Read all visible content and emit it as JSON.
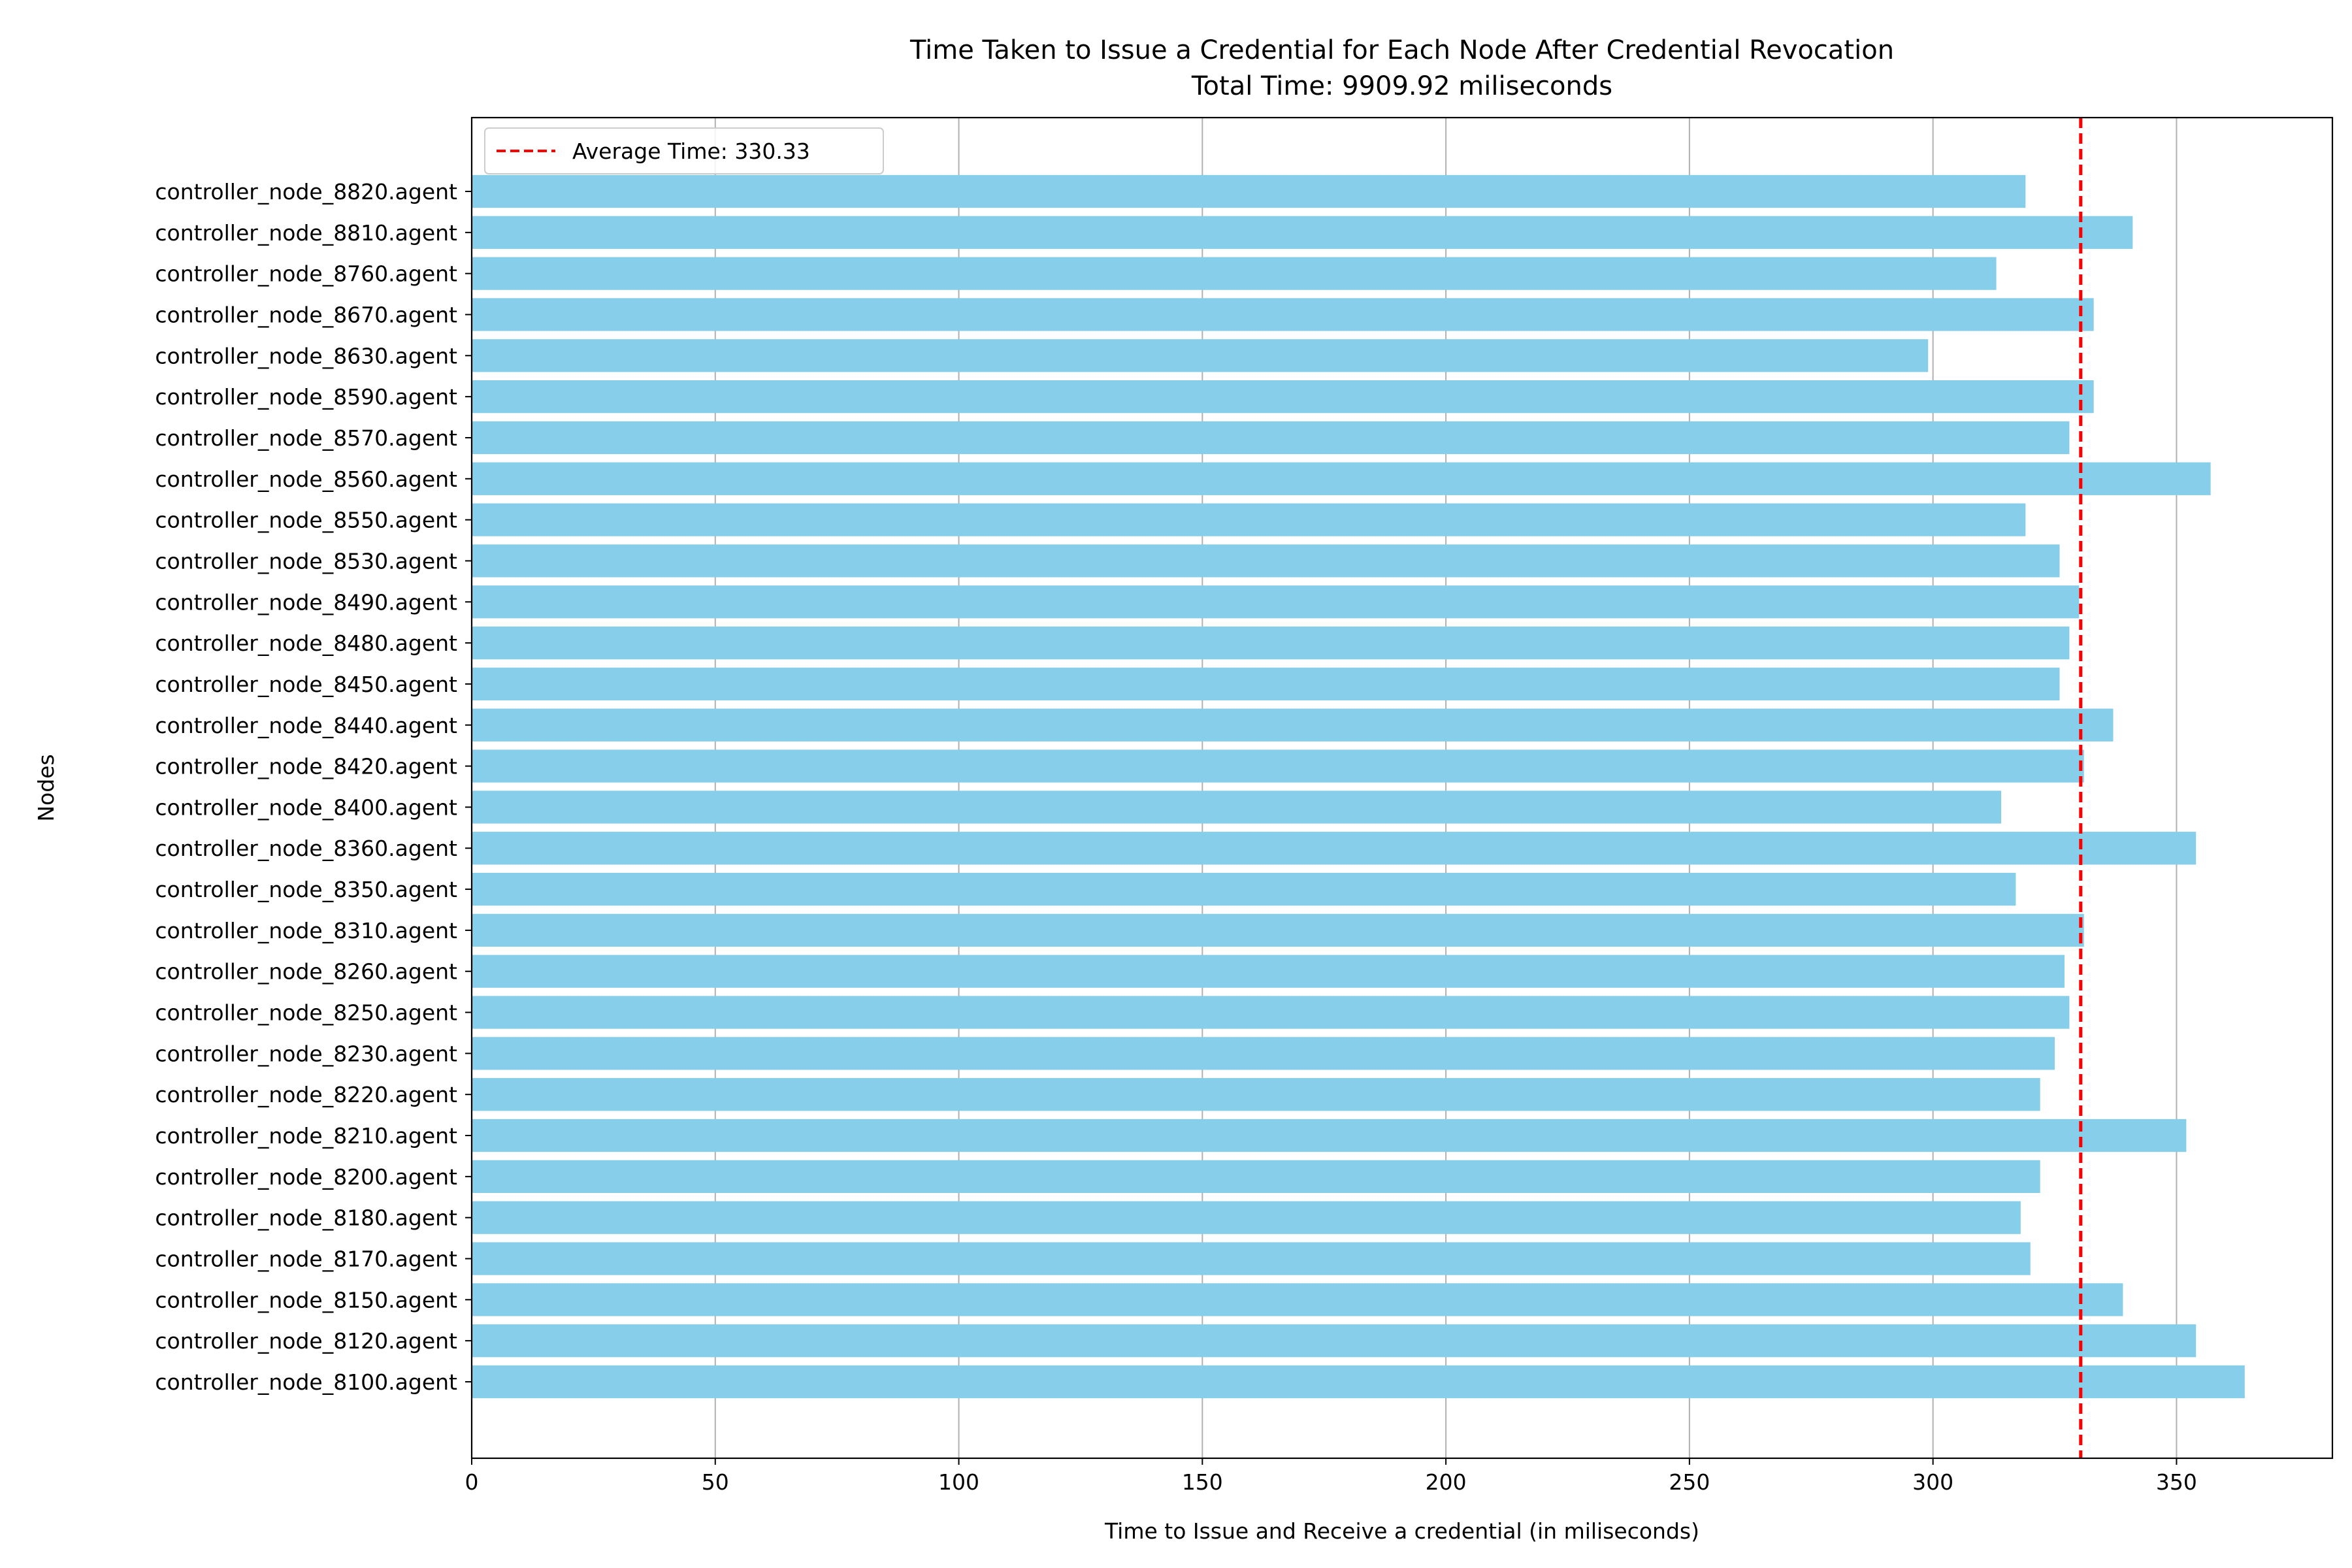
{
  "chart_data": {
    "type": "bar",
    "orientation": "horizontal",
    "title": "Time Taken to Issue a Credential for Each Node After Credential Revocation",
    "subtitle": "Total Time: 9909.92 miliseconds",
    "xlabel": "Time to Issue and Receive a credential (in miliseconds)",
    "ylabel": "Nodes",
    "xlim": [
      0,
      382
    ],
    "xticks": [
      0,
      50,
      100,
      150,
      200,
      250,
      300,
      350
    ],
    "grid": "x-axis",
    "bar_color": "#87ceeb",
    "average": {
      "value": 330.33,
      "label": "Average Time: 330.33",
      "color": "#ff0000",
      "style": "dashed"
    },
    "legend_position": "top-left",
    "categories": [
      "controller_node_8100.agent",
      "controller_node_8120.agent",
      "controller_node_8150.agent",
      "controller_node_8170.agent",
      "controller_node_8180.agent",
      "controller_node_8200.agent",
      "controller_node_8210.agent",
      "controller_node_8220.agent",
      "controller_node_8230.agent",
      "controller_node_8250.agent",
      "controller_node_8260.agent",
      "controller_node_8310.agent",
      "controller_node_8350.agent",
      "controller_node_8360.agent",
      "controller_node_8400.agent",
      "controller_node_8420.agent",
      "controller_node_8440.agent",
      "controller_node_8450.agent",
      "controller_node_8480.agent",
      "controller_node_8490.agent",
      "controller_node_8530.agent",
      "controller_node_8550.agent",
      "controller_node_8560.agent",
      "controller_node_8570.agent",
      "controller_node_8590.agent",
      "controller_node_8630.agent",
      "controller_node_8670.agent",
      "controller_node_8760.agent",
      "controller_node_8810.agent",
      "controller_node_8820.agent"
    ],
    "values": [
      364,
      354,
      339,
      320,
      318,
      322,
      352,
      322,
      325,
      328,
      327,
      331,
      317,
      354,
      314,
      331,
      337,
      326,
      328,
      330,
      326,
      319,
      357,
      328,
      333,
      299,
      333,
      313,
      341,
      319
    ]
  }
}
